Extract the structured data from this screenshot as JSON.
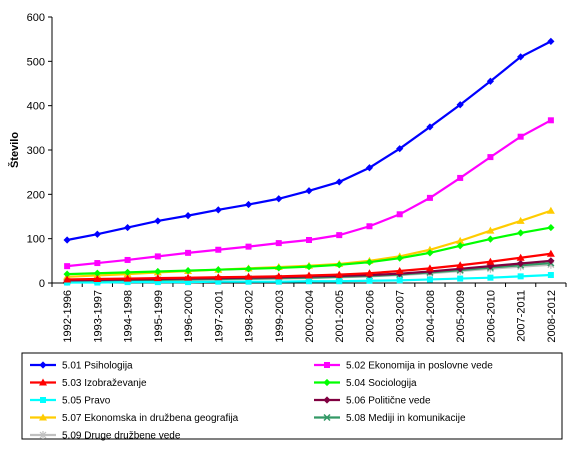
{
  "chart_data": {
    "type": "line",
    "title": "",
    "xlabel": "",
    "ylabel": "Število",
    "ylim": [
      0,
      600
    ],
    "yticks": [
      0,
      100,
      200,
      300,
      400,
      500,
      600
    ],
    "grid": false,
    "legend_position": "bottom",
    "categories": [
      "1992-1996",
      "1993-1997",
      "1994-1998",
      "1995-1999",
      "1996-2000",
      "1997-2001",
      "1998-2002",
      "1999-2003",
      "2000-2004",
      "2001-2005",
      "2002-2006",
      "2003-2007",
      "2004-2008",
      "2005-2009",
      "2006-2010",
      "2007-2011",
      "2008-2012"
    ],
    "series": [
      {
        "name": "5.01 Psihologija",
        "color": "#0000FF",
        "marker": "diamond",
        "values": [
          97,
          110,
          125,
          140,
          152,
          165,
          177,
          190,
          208,
          228,
          260,
          303,
          352,
          402,
          455,
          510,
          545
        ]
      },
      {
        "name": "5.02 Ekonomija in poslovne vede",
        "color": "#FF00FF",
        "marker": "square",
        "values": [
          38,
          45,
          52,
          60,
          68,
          75,
          82,
          90,
          97,
          108,
          128,
          155,
          192,
          237,
          284,
          330,
          367
        ]
      },
      {
        "name": "5.03 Izobraževanje",
        "color": "#FF0000",
        "marker": "triangle",
        "values": [
          8,
          9,
          10,
          11,
          12,
          13,
          14,
          15,
          17,
          19,
          22,
          27,
          33,
          40,
          48,
          57,
          66
        ]
      },
      {
        "name": "5.04 Sociologija",
        "color": "#00FF00",
        "marker": "diamond",
        "values": [
          20,
          22,
          24,
          26,
          28,
          30,
          32,
          34,
          37,
          41,
          47,
          56,
          68,
          84,
          99,
          113,
          125
        ]
      },
      {
        "name": "5.05 Pravo",
        "color": "#00FFFF",
        "marker": "square",
        "values": [
          1,
          1,
          2,
          2,
          2,
          3,
          3,
          3,
          4,
          4,
          5,
          6,
          8,
          10,
          12,
          15,
          18
        ]
      },
      {
        "name": "5.06 Politične vede",
        "color": "#800040",
        "marker": "diamond",
        "values": [
          6,
          7,
          8,
          9,
          10,
          11,
          12,
          13,
          15,
          16,
          18,
          21,
          26,
          32,
          38,
          44,
          50
        ]
      },
      {
        "name": "5.07 Ekonomska in družbena geografija",
        "color": "#FFCC00",
        "marker": "triangle",
        "values": [
          14,
          17,
          20,
          24,
          27,
          30,
          33,
          36,
          39,
          43,
          50,
          60,
          75,
          95,
          118,
          140,
          163
        ]
      },
      {
        "name": "5.08 Mediji in komunikacije",
        "color": "#339966",
        "marker": "x",
        "values": [
          4,
          5,
          6,
          7,
          8,
          9,
          10,
          11,
          12,
          14,
          16,
          19,
          24,
          29,
          35,
          40,
          45
        ]
      },
      {
        "name": "5.09 Druge družbene vede",
        "color": "#C0C0C0",
        "marker": "star",
        "values": [
          3,
          4,
          5,
          6,
          7,
          8,
          9,
          10,
          11,
          13,
          15,
          18,
          22,
          27,
          32,
          37,
          41
        ]
      }
    ]
  }
}
